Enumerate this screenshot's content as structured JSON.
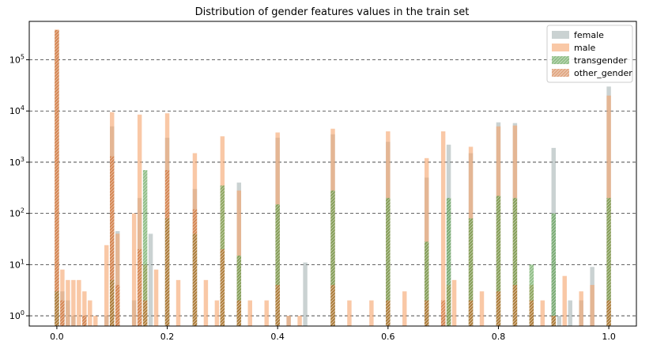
{
  "chart_data": {
    "type": "bar",
    "title": "Distribution of gender features values in the train set",
    "xlabel": "",
    "ylabel": "",
    "xlim": [
      -0.05,
      1.05
    ],
    "ylog": true,
    "ylim_log10": [
      -0.2,
      5.75
    ],
    "grid": "horizontal dashed at major y ticks",
    "legend_position": "top-right",
    "x_ticks": [
      {
        "value": 0.0,
        "label": "0.0"
      },
      {
        "value": 0.2,
        "label": "0.2"
      },
      {
        "value": 0.4,
        "label": "0.4"
      },
      {
        "value": 0.6,
        "label": "0.6"
      },
      {
        "value": 0.8,
        "label": "0.8"
      },
      {
        "value": 1.0,
        "label": "1.0"
      }
    ],
    "y_ticks": [
      {
        "value": 1,
        "base": "10",
        "exp": "0"
      },
      {
        "value": 10,
        "base": "10",
        "exp": "1"
      },
      {
        "value": 100,
        "base": "10",
        "exp": "2"
      },
      {
        "value": 1000,
        "base": "10",
        "exp": "3"
      },
      {
        "value": 10000,
        "base": "10",
        "exp": "4"
      },
      {
        "value": 100000,
        "base": "10",
        "exp": "5"
      }
    ],
    "bin_width": 0.01,
    "series": [
      {
        "name": "female",
        "color": "#95a5a6",
        "opacity": 0.5,
        "hatch": false,
        "x": [
          0.0,
          0.01,
          0.02,
          0.03,
          0.05,
          0.09,
          0.1,
          0.11,
          0.14,
          0.15,
          0.17,
          0.2,
          0.25,
          0.33,
          0.4,
          0.42,
          0.45,
          0.5,
          0.6,
          0.67,
          0.7,
          0.71,
          0.75,
          0.8,
          0.83,
          0.86,
          0.9,
          0.91,
          0.93,
          0.95,
          0.97,
          1.0
        ],
        "values": [
          380000,
          3,
          2,
          1,
          1,
          1,
          5000,
          45,
          2,
          200,
          40,
          3000,
          300,
          400,
          3000,
          1,
          11,
          3500,
          2500,
          500,
          1,
          2200,
          1500,
          6000,
          5800,
          1,
          1900,
          1,
          2,
          2,
          9,
          30000
        ]
      },
      {
        "name": "male",
        "color": "#f5a36b",
        "opacity": 0.6,
        "hatch": false,
        "x": [
          0.0,
          0.01,
          0.02,
          0.03,
          0.04,
          0.05,
          0.06,
          0.07,
          0.09,
          0.1,
          0.11,
          0.14,
          0.15,
          0.16,
          0.18,
          0.2,
          0.22,
          0.25,
          0.27,
          0.29,
          0.3,
          0.33,
          0.35,
          0.38,
          0.4,
          0.42,
          0.44,
          0.5,
          0.53,
          0.57,
          0.6,
          0.63,
          0.67,
          0.7,
          0.71,
          0.72,
          0.75,
          0.77,
          0.8,
          0.83,
          0.86,
          0.88,
          0.9,
          0.92,
          0.95,
          0.97,
          1.0
        ],
        "values": [
          390000,
          8,
          5,
          5,
          5,
          3,
          2,
          1,
          24,
          9500,
          40,
          100,
          8500,
          10,
          8,
          9000,
          5,
          1500,
          5,
          2,
          3200,
          280,
          2,
          2,
          3800,
          1,
          1,
          4500,
          2,
          2,
          4000,
          3,
          1200,
          4000,
          4,
          5,
          2000,
          3,
          5000,
          5200,
          4,
          2,
          1,
          6,
          3,
          4,
          20000
        ]
      },
      {
        "name": "transgender",
        "color": "#3b8c2a",
        "opacity": 0.55,
        "hatch": true,
        "x": [
          0.0,
          0.1,
          0.16,
          0.2,
          0.25,
          0.3,
          0.33,
          0.4,
          0.5,
          0.6,
          0.67,
          0.71,
          0.75,
          0.8,
          0.83,
          0.86,
          0.9,
          1.0
        ],
        "values": [
          3,
          5,
          700,
          80,
          40,
          350,
          15,
          150,
          280,
          200,
          28,
          200,
          80,
          220,
          200,
          10,
          100,
          200
        ]
      },
      {
        "name": "other_gender",
        "color": "#c8601e",
        "opacity": 0.55,
        "hatch": true,
        "x": [
          0.0,
          0.01,
          0.05,
          0.1,
          0.11,
          0.15,
          0.16,
          0.2,
          0.25,
          0.3,
          0.33,
          0.4,
          0.5,
          0.6,
          0.67,
          0.7,
          0.75,
          0.8,
          0.83,
          0.86,
          0.9,
          1.0
        ],
        "values": [
          380000,
          2,
          1,
          1300,
          4,
          20,
          2,
          700,
          120,
          20,
          2,
          4,
          4,
          2,
          2,
          2,
          2,
          3,
          4,
          2,
          1,
          2
        ]
      }
    ]
  }
}
